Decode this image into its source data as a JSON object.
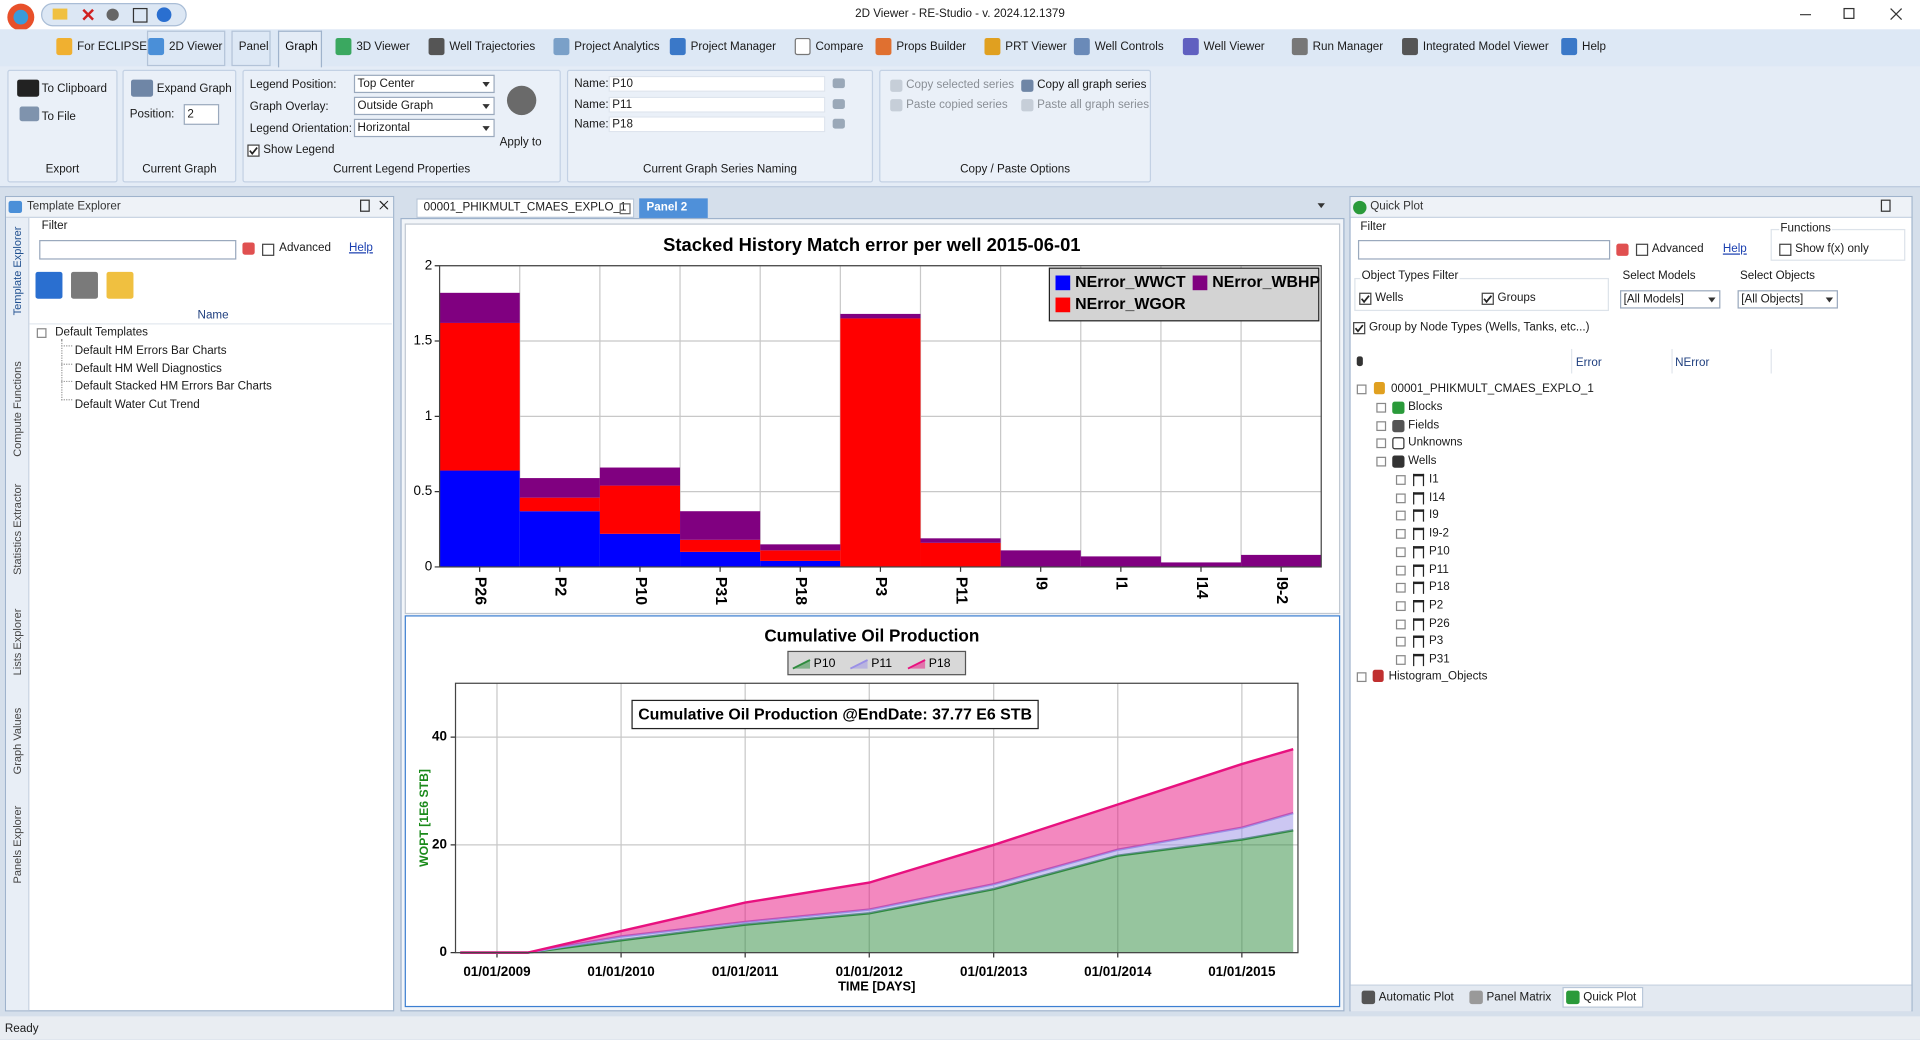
{
  "title_bar": {
    "title": "2D Viewer - RE-Studio - v. 2024.12.1379"
  },
  "ribbon": {
    "tabs": [
      "For ECLIPSE",
      "2D Viewer",
      "Panel",
      "Graph",
      "3D Viewer",
      "Well Trajectories",
      "Project Analytics",
      "Project Manager",
      "Compare",
      "Props Builder",
      "PRT Viewer",
      "Well Controls",
      "Well Viewer",
      "Run Manager",
      "Integrated Model Viewer",
      "Help"
    ],
    "selected_tab": 3,
    "groups": {
      "export": {
        "label": "Export",
        "buttons": [
          "To Clipboard",
          "To File"
        ]
      },
      "current_graph": {
        "label": "Current Graph",
        "expand": "Expand Graph",
        "position_label": "Position:",
        "position": 2
      },
      "legend": {
        "label": "Current Legend Properties",
        "fields": [
          {
            "label": "Legend Position:",
            "value": "Top Center"
          },
          {
            "label": "Graph Overlay:",
            "value": "Outside Graph"
          },
          {
            "label": "Legend Orientation:",
            "value": "Horizontal"
          }
        ],
        "show_legend": {
          "label": "Show Legend",
          "checked": true
        },
        "apply": "Apply to"
      },
      "naming": {
        "label": "Current Graph Series Naming",
        "fields": [
          {
            "label": "Name:",
            "value": "P10"
          },
          {
            "label": "Name:",
            "value": "P11"
          },
          {
            "label": "Name:",
            "value": "P18"
          }
        ]
      },
      "copy": {
        "label": "Copy / Paste Options",
        "buttons": [
          {
            "label": "Copy selected series",
            "enabled": false
          },
          {
            "label": "Copy all graph series",
            "enabled": true
          },
          {
            "label": "Paste copied series",
            "enabled": false
          },
          {
            "label": "Paste all graph series",
            "enabled": false
          }
        ]
      }
    }
  },
  "left_panel": {
    "title": "Template Explorer",
    "side_tabs": [
      "Template Explorer",
      "Compute Functions",
      "Statistics Extractor",
      "Lists Explorer",
      "Graph Values",
      "Panels Explorer"
    ],
    "filter": "Filter",
    "advanced": {
      "label": "Advanced",
      "checked": false
    },
    "help": "Help",
    "column": "Name",
    "root": "Default Templates",
    "items": [
      "Default HM Errors Bar Charts",
      "Default HM Well Diagnostics",
      "Default Stacked HM Errors Bar Charts",
      "Default Water Cut Trend"
    ]
  },
  "center": {
    "tabs": [
      "00001_PHIKMULT_CMAES_EXPLO_1",
      "Panel 2"
    ],
    "selected_tab": 1
  },
  "chart_data": [
    {
      "type": "bar",
      "stacked": true,
      "title": "Stacked History Match error per well  2015-06-01",
      "categories": [
        "P26",
        "P2",
        "P10",
        "P31",
        "P18",
        "P3",
        "P11",
        "I9",
        "I1",
        "I14",
        "I9-2"
      ],
      "series": [
        {
          "name": "NError_WWCT",
          "color": "#0000ff",
          "values": [
            0.64,
            0.37,
            0.22,
            0.1,
            0.04,
            0,
            0,
            0,
            0,
            0,
            0
          ]
        },
        {
          "name": "NError_WGOR",
          "color": "#ff0000",
          "values": [
            0.98,
            0.09,
            0.32,
            0.08,
            0.07,
            1.65,
            0.16,
            0,
            0,
            0,
            0
          ]
        },
        {
          "name": "NError_WBHP",
          "color": "#800080",
          "values": [
            0.2,
            0.13,
            0.12,
            0.19,
            0.04,
            0.03,
            0.03,
            0.11,
            0.07,
            0.03,
            0.08
          ]
        }
      ],
      "ylim": [
        0,
        2
      ],
      "yticks": [
        0,
        0.5,
        1,
        1.5,
        2
      ],
      "grid": true,
      "legend": "top-right"
    },
    {
      "type": "area",
      "stacked": true,
      "title": "Cumulative Oil Production",
      "annotation": "Cumulative Oil Production @EndDate: 37.77 E6 STB",
      "xlabel": "TIME [DAYS]",
      "ylabel": "WOPT [1E6 STB]",
      "x": [
        "15/09/2008",
        "01/04/2009",
        "01/01/2010",
        "01/01/2011",
        "01/01/2012",
        "01/01/2013",
        "01/01/2014",
        "01/01/2015",
        "01/06/2015"
      ],
      "series": [
        {
          "name": "P10",
          "color": "#2e8b3e",
          "values": [
            0,
            0,
            2.3,
            5.2,
            7.3,
            11.8,
            18,
            21,
            22.7
          ]
        },
        {
          "name": "P11",
          "color": "#9a90e6",
          "values": [
            0,
            0,
            0.7,
            0.5,
            0.7,
            0.9,
            1.1,
            2.2,
            3.2
          ]
        },
        {
          "name": "P18",
          "color": "#e8117f",
          "values": [
            0,
            0,
            1,
            3.6,
            5,
            7.3,
            8.4,
            11.8,
            11.87
          ]
        }
      ],
      "xlim": [
        "01/09/2008",
        "15/06/2015"
      ],
      "xticks": [
        "01/01/2009",
        "01/01/2010",
        "01/01/2011",
        "01/01/2012",
        "01/01/2013",
        "01/01/2014",
        "01/01/2015"
      ],
      "ylim": [
        0,
        50
      ],
      "yticks": [
        0,
        20,
        40
      ],
      "grid": true,
      "legend": "top-center"
    }
  ],
  "right_panel": {
    "title": "Quick Plot",
    "filter": "Filter",
    "advanced": {
      "label": "Advanced",
      "checked": false
    },
    "help": "Help",
    "functions": "Functions",
    "show_fx": {
      "label": "Show f(x) only",
      "checked": false
    },
    "object_types": "Object Types Filter",
    "wells": {
      "label": "Wells",
      "checked": true
    },
    "groups": {
      "label": "Groups",
      "checked": true
    },
    "select_models": "Select Models",
    "models_value": "[All Models]",
    "select_objects": "Select Objects",
    "objects_value": "[All Objects]",
    "group_by": {
      "label": "Group by Node Types (Wells, Tanks, etc...)",
      "checked": true
    },
    "columns": [
      "Error",
      "NError"
    ],
    "tree": {
      "root": "00001_PHIKMULT_CMAES_EXPLO_1",
      "nodes": [
        "Blocks",
        "Fields",
        "Unknowns",
        "Wells"
      ],
      "wells": [
        "I1",
        "I14",
        "I9",
        "I9-2",
        "P10",
        "P11",
        "P18",
        "P2",
        "P26",
        "P3",
        "P31"
      ],
      "other": "Histogram_Objects"
    },
    "bottom_tabs": [
      "Automatic Plot",
      "Panel Matrix",
      "Quick Plot"
    ],
    "selected_bottom_tab": 2
  },
  "status_bar": {
    "text": "Ready"
  }
}
